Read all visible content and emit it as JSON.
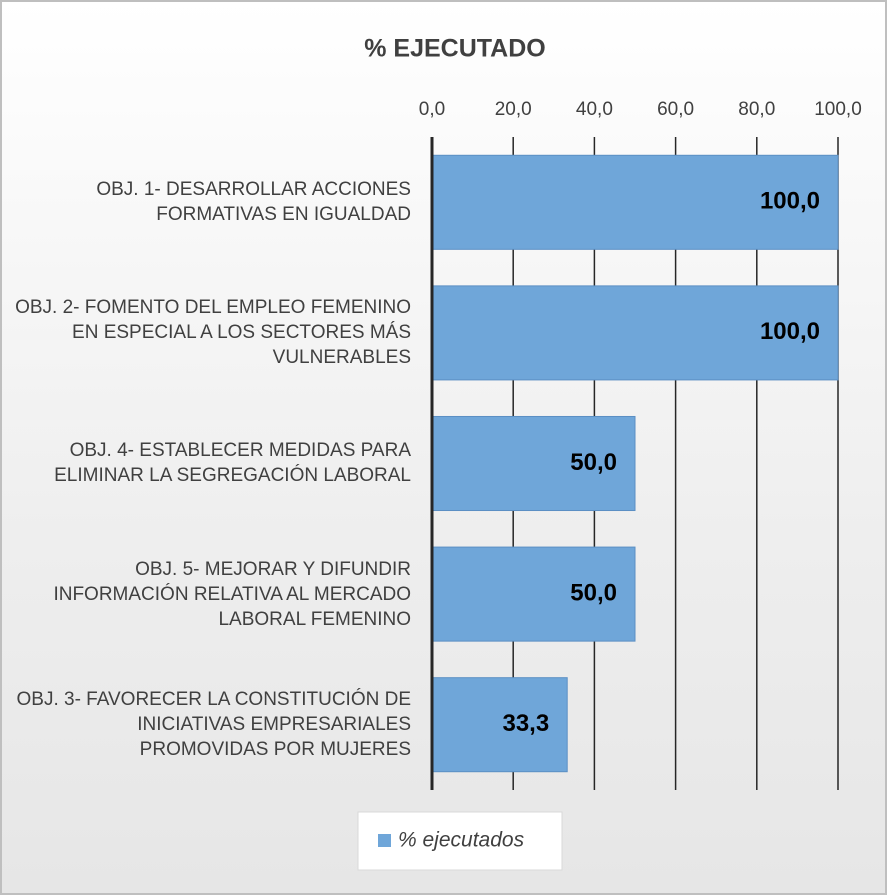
{
  "chart_data": {
    "type": "bar",
    "orientation": "horizontal",
    "title": "% EJECUTADO",
    "categories": [
      "OBJ. 1- DESARROLLAR ACCIONES FORMATIVAS EN IGUALDAD",
      "OBJ. 2- FOMENTO DEL EMPLEO FEMENINO EN ESPECIAL A LOS SECTORES MÁS VULNERABLES",
      "OBJ. 4- ESTABLECER MEDIDAS PARA ELIMINAR LA SEGREGACIÓN LABORAL",
      "OBJ. 5- MEJORAR Y DIFUNDIR INFORMACIÓN RELATIVA AL MERCADO LABORAL FEMENINO",
      "OBJ. 3- FAVORECER LA CONSTITUCIÓN DE INICIATIVAS EMPRESARIALES PROMOVIDAS POR MUJERES"
    ],
    "series": [
      {
        "name": "% ejecutados",
        "color": "#6fa6d9",
        "values": [
          100,
          100,
          50,
          50,
          33.3
        ],
        "value_labels": [
          "100,0",
          "100,0",
          "50,0",
          "50,0",
          "33,3"
        ]
      }
    ],
    "xlim": [
      0,
      100
    ],
    "xticks": [
      {
        "value": 0,
        "label": "0,0"
      },
      {
        "value": 20,
        "label": "20,0"
      },
      {
        "value": 40,
        "label": "40,0"
      },
      {
        "value": 60,
        "label": "60,0"
      },
      {
        "value": 80,
        "label": "80,0"
      },
      {
        "value": 100,
        "label": "100,0"
      }
    ],
    "grid": true,
    "legend": "bottom"
  }
}
